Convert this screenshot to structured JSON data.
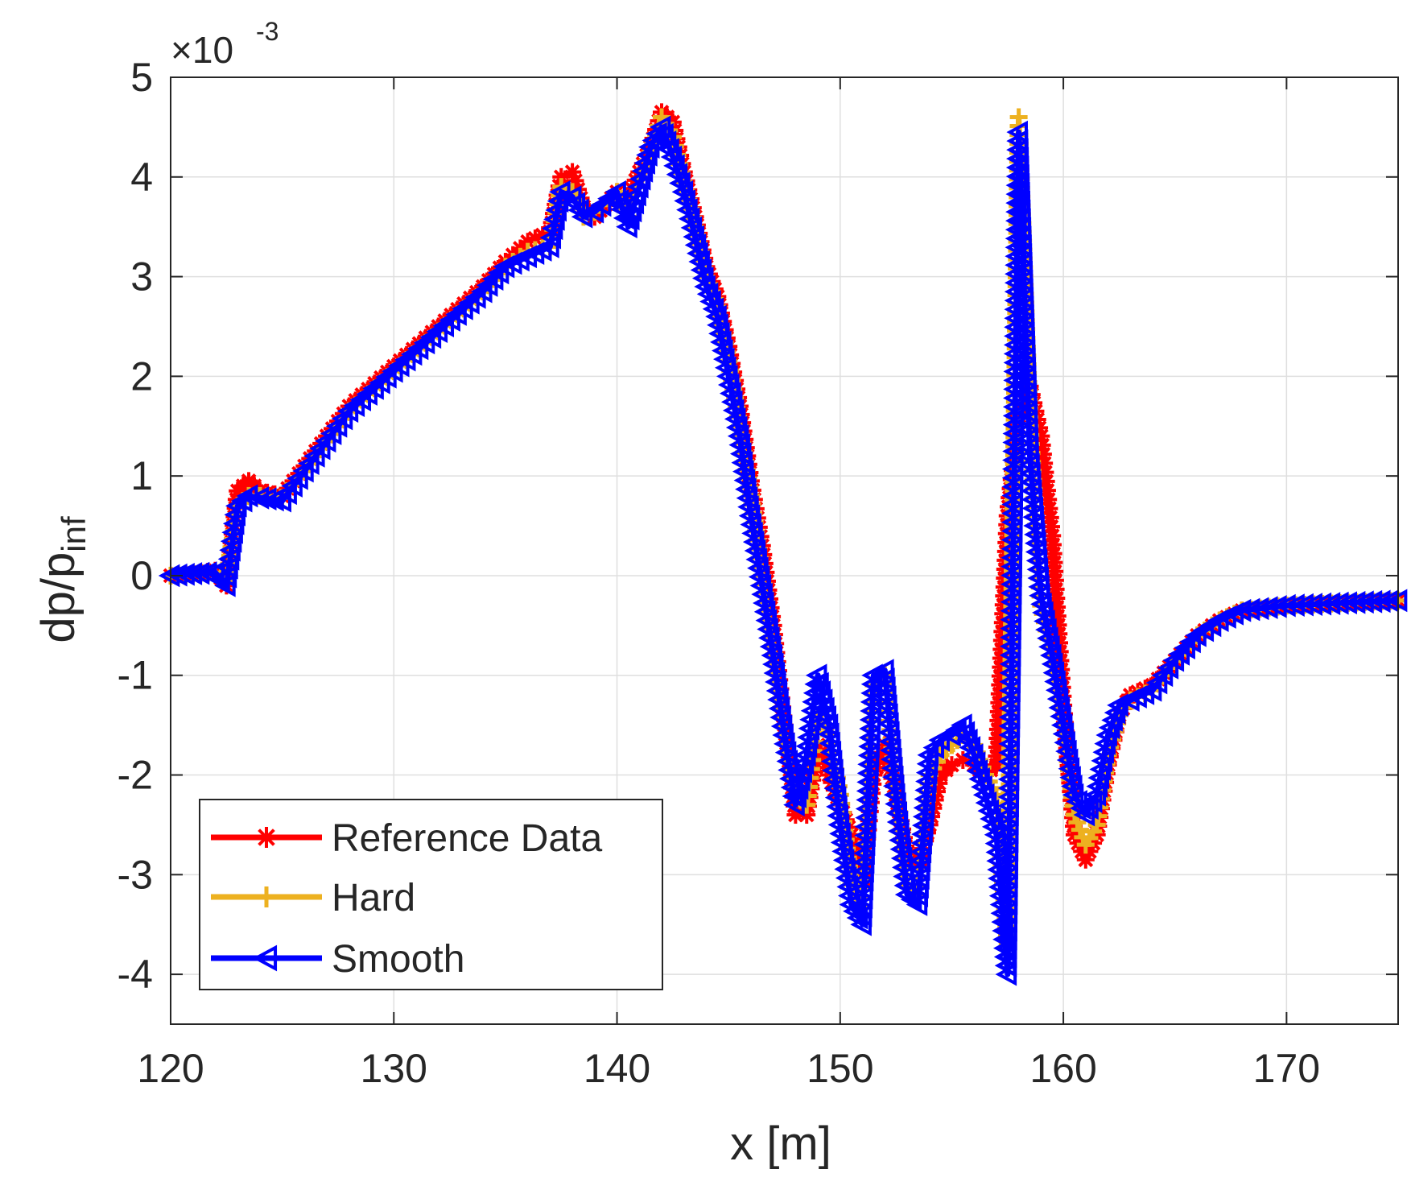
{
  "chart_data": {
    "type": "line",
    "xlabel": "x [m]",
    "ylabel_main": "dp/p",
    "ylabel_sub": "inf",
    "y_multiplier_prefix": "×10",
    "y_multiplier_exp": "-3",
    "xlim": [
      120,
      175
    ],
    "ylim": [
      -4.5,
      5
    ],
    "x_ticks": [
      120,
      130,
      140,
      150,
      160,
      170
    ],
    "y_ticks": [
      -4,
      -3,
      -2,
      -1,
      0,
      1,
      2,
      3,
      4,
      5
    ],
    "grid": true,
    "legend_position": "bottom-left",
    "series": [
      {
        "name": "Reference Data",
        "color": "#ff0000",
        "marker": "asterisk",
        "x": [
          120,
          121,
          122,
          122.5,
          123,
          123.5,
          124,
          125,
          126,
          127,
          128,
          130,
          132,
          134,
          135,
          136,
          137,
          137.5,
          138,
          138.5,
          139,
          140,
          140.5,
          141,
          141.5,
          142,
          142.5,
          143,
          143.5,
          144,
          144.5,
          145,
          145.5,
          146,
          146.5,
          147,
          147.5,
          148,
          148.5,
          149,
          149.5,
          150,
          150.5,
          151,
          151.5,
          152,
          152.5,
          153,
          153.5,
          154,
          154.5,
          155,
          155.5,
          156,
          156.5,
          157,
          157.5,
          158,
          158.5,
          159,
          159.5,
          160,
          160.5,
          161,
          161.5,
          162,
          162.5,
          163,
          164,
          165,
          166,
          167,
          168,
          170,
          172,
          175
        ],
        "y": [
          0,
          0.02,
          0.05,
          -0.1,
          0.85,
          0.95,
          0.85,
          0.8,
          1.1,
          1.4,
          1.7,
          2.1,
          2.5,
          2.9,
          3.15,
          3.35,
          3.45,
          4,
          4.05,
          3.7,
          3.6,
          3.85,
          3.8,
          4.05,
          4.3,
          4.65,
          4.55,
          4.05,
          3.6,
          3.1,
          2.8,
          2.3,
          1.7,
          0.95,
          0.3,
          -0.5,
          -1.5,
          -2.4,
          -2.4,
          -1.7,
          -2.0,
          -2.3,
          -2.6,
          -3.1,
          -2.0,
          -1.7,
          -2.2,
          -2.8,
          -2.9,
          -2.5,
          -2.0,
          -1.9,
          -1.85,
          -1.9,
          -2.0,
          -1.9,
          0.6,
          1.6,
          1.9,
          1.4,
          0.4,
          -1.3,
          -2.6,
          -2.85,
          -2.6,
          -1.9,
          -1.4,
          -1.2,
          -1.1,
          -0.85,
          -0.6,
          -0.45,
          -0.35,
          -0.3,
          -0.28,
          -0.25
        ]
      },
      {
        "name": "Hard",
        "color": "#edb120",
        "marker": "plus",
        "x": [
          120,
          121,
          122,
          122.5,
          123,
          123.5,
          124,
          125,
          126,
          127,
          128,
          130,
          132,
          134,
          135,
          136,
          137,
          137.5,
          138,
          138.5,
          139,
          140,
          140.5,
          141,
          141.5,
          142,
          142.5,
          143,
          143.5,
          144,
          144.5,
          145,
          145.5,
          146,
          146.5,
          147,
          147.5,
          148,
          148.5,
          149,
          149.5,
          150,
          150.5,
          151,
          151.5,
          152,
          152.5,
          153,
          153.5,
          154,
          154.5,
          155,
          155.5,
          156,
          156.5,
          157,
          157.5,
          158,
          158.5,
          159,
          159.5,
          160,
          160.5,
          161,
          161.5,
          162,
          162.5,
          163,
          164,
          165,
          166,
          167,
          168,
          170,
          172,
          175
        ],
        "y": [
          0,
          0.02,
          0.03,
          -0.05,
          0.7,
          0.8,
          0.8,
          0.78,
          1.05,
          1.35,
          1.65,
          2.05,
          2.45,
          2.85,
          3.1,
          3.25,
          3.3,
          3.9,
          3.85,
          3.6,
          3.65,
          3.85,
          3.6,
          3.9,
          4.25,
          4.6,
          4.4,
          3.95,
          3.5,
          3.0,
          2.7,
          2.15,
          1.5,
          0.8,
          0.0,
          -0.7,
          -1.6,
          -2.2,
          -2.3,
          -1.4,
          -1.6,
          -2.2,
          -3.1,
          -3.4,
          -1.1,
          -1.0,
          -2.1,
          -3.1,
          -3.2,
          -2.0,
          -1.8,
          -1.7,
          -1.6,
          -1.7,
          -2.0,
          -2.2,
          -3.7,
          4.6,
          1.5,
          -0.3,
          -0.8,
          -1.5,
          -2.4,
          -2.7,
          -2.5,
          -1.8,
          -1.4,
          -1.25,
          -1.15,
          -0.85,
          -0.6,
          -0.45,
          -0.35,
          -0.3,
          -0.28,
          -0.25
        ]
      },
      {
        "name": "Smooth",
        "color": "#0000ff",
        "marker": "triangle-left",
        "x": [
          120,
          121,
          122,
          122.5,
          123,
          123.5,
          124,
          125,
          126,
          127,
          128,
          130,
          132,
          134,
          135,
          136,
          137,
          137.5,
          138,
          138.5,
          139,
          140,
          140.5,
          141,
          141.5,
          142,
          142.5,
          143,
          143.5,
          144,
          144.5,
          145,
          145.5,
          146,
          146.5,
          147,
          147.5,
          148,
          148.5,
          149,
          149.5,
          150,
          150.5,
          151,
          151.5,
          152,
          152.5,
          153,
          153.5,
          154,
          154.5,
          155,
          155.5,
          156,
          156.5,
          157,
          157.5,
          158,
          158.5,
          159,
          159.5,
          160,
          160.5,
          161,
          161.5,
          162,
          162.5,
          163,
          164,
          165,
          166,
          167,
          168,
          170,
          172,
          175
        ],
        "y": [
          0,
          0.02,
          0.03,
          -0.1,
          0.7,
          0.8,
          0.78,
          0.75,
          1.05,
          1.35,
          1.65,
          2.05,
          2.45,
          2.85,
          3.1,
          3.2,
          3.3,
          3.85,
          3.8,
          3.6,
          3.65,
          3.85,
          3.5,
          3.9,
          4.3,
          4.5,
          4.2,
          3.85,
          3.4,
          2.9,
          2.6,
          2.0,
          1.4,
          0.6,
          -0.1,
          -0.8,
          -1.6,
          -2.3,
          -1.8,
          -1.0,
          -1.5,
          -2.5,
          -3.3,
          -3.5,
          -1.0,
          -0.95,
          -2.2,
          -3.2,
          -3.3,
          -1.8,
          -1.65,
          -1.6,
          -1.5,
          -1.8,
          -2.2,
          -2.6,
          -4.0,
          4.45,
          1.2,
          -0.2,
          -0.8,
          -1.5,
          -2.2,
          -2.4,
          -2.2,
          -1.6,
          -1.3,
          -1.25,
          -1.15,
          -0.85,
          -0.6,
          -0.45,
          -0.35,
          -0.3,
          -0.28,
          -0.25
        ]
      }
    ]
  }
}
